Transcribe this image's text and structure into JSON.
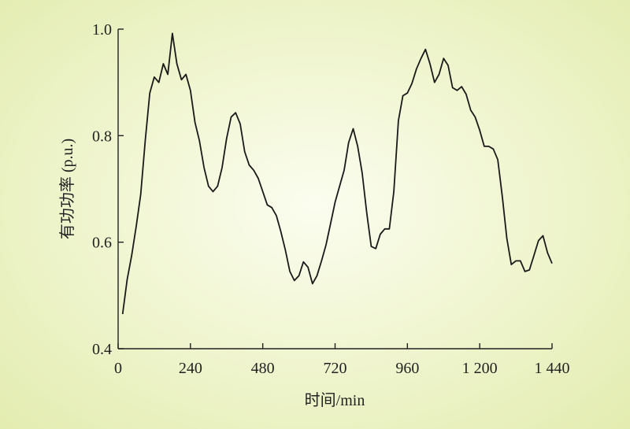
{
  "chart_data": {
    "type": "line",
    "xlabel": "时间/min",
    "ylabel": "有功功率 (p.u.)",
    "xlim": [
      0,
      1440
    ],
    "ylim": [
      0.4,
      1.0
    ],
    "xticks": [
      0,
      240,
      480,
      720,
      960,
      1200,
      1440
    ],
    "xtick_labels": [
      "0",
      "240",
      "480",
      "720",
      "960",
      "1 200",
      "1 440"
    ],
    "yticks": [
      0.4,
      0.6,
      0.8,
      1.0
    ],
    "ytick_labels": [
      "0.4",
      "0.6",
      "0.8",
      "1.0"
    ],
    "grid": false,
    "series": [
      {
        "color": "#1a1a1a",
        "x": [
          15,
          30,
          45,
          60,
          75,
          90,
          105,
          120,
          135,
          150,
          165,
          180,
          195,
          210,
          225,
          240,
          255,
          270,
          285,
          300,
          315,
          330,
          345,
          360,
          375,
          390,
          405,
          420,
          435,
          450,
          465,
          480,
          495,
          510,
          525,
          540,
          555,
          570,
          585,
          600,
          615,
          630,
          645,
          660,
          675,
          690,
          705,
          720,
          735,
          750,
          765,
          780,
          795,
          810,
          825,
          840,
          855,
          870,
          885,
          900,
          915,
          930,
          945,
          960,
          975,
          990,
          1005,
          1020,
          1035,
          1050,
          1065,
          1080,
          1095,
          1110,
          1125,
          1140,
          1155,
          1170,
          1185,
          1200,
          1215,
          1230,
          1245,
          1260,
          1275,
          1290,
          1305,
          1320,
          1335,
          1350,
          1365,
          1380,
          1395,
          1410,
          1425,
          1440
        ],
        "values": [
          0.465,
          0.53,
          0.575,
          0.63,
          0.69,
          0.79,
          0.88,
          0.91,
          0.9,
          0.935,
          0.915,
          0.992,
          0.935,
          0.905,
          0.915,
          0.885,
          0.825,
          0.79,
          0.74,
          0.705,
          0.695,
          0.705,
          0.74,
          0.795,
          0.835,
          0.843,
          0.822,
          0.77,
          0.745,
          0.735,
          0.72,
          0.695,
          0.67,
          0.665,
          0.65,
          0.62,
          0.585,
          0.545,
          0.528,
          0.537,
          0.563,
          0.553,
          0.522,
          0.537,
          0.565,
          0.595,
          0.635,
          0.675,
          0.705,
          0.735,
          0.787,
          0.813,
          0.78,
          0.73,
          0.655,
          0.592,
          0.588,
          0.615,
          0.625,
          0.625,
          0.695,
          0.828,
          0.875,
          0.88,
          0.898,
          0.925,
          0.945,
          0.962,
          0.935,
          0.9,
          0.915,
          0.945,
          0.932,
          0.89,
          0.885,
          0.892,
          0.878,
          0.848,
          0.835,
          0.81,
          0.78,
          0.78,
          0.775,
          0.755,
          0.685,
          0.607,
          0.558,
          0.565,
          0.565,
          0.545,
          0.548,
          0.575,
          0.603,
          0.612,
          0.58,
          0.56
        ]
      }
    ]
  }
}
